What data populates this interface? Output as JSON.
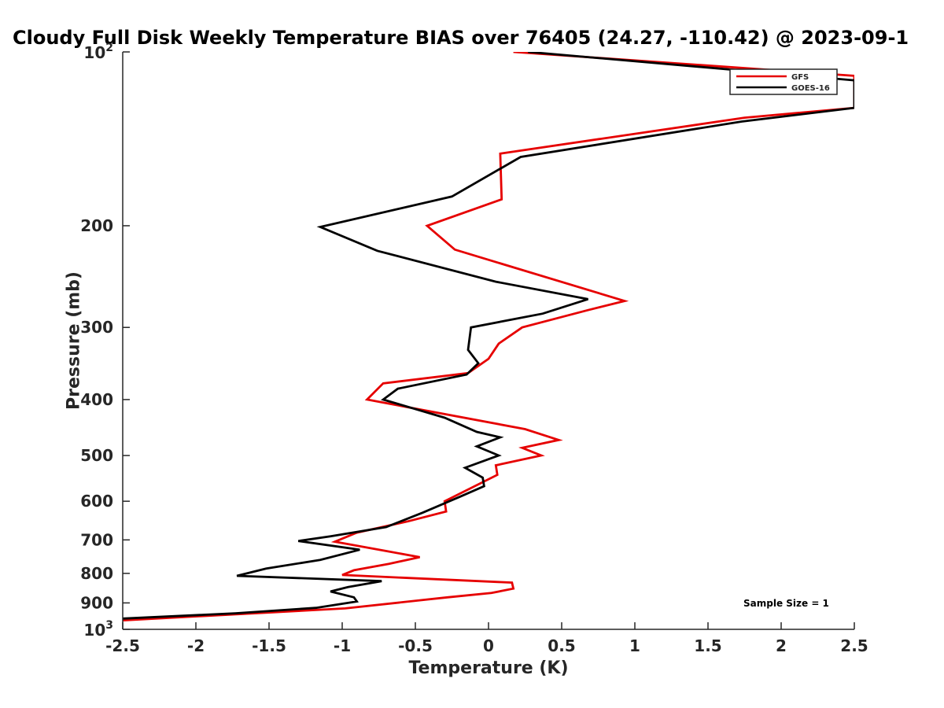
{
  "chart_data": {
    "type": "line",
    "title": "Cloudy Full Disk Weekly Temperature BIAS over 76405 (24.27, -110.42) @ 2023-09-1",
    "xlabel": "Temperature (K)",
    "ylabel": "Pressure (mb)",
    "xlim": [
      -2.5,
      2.5
    ],
    "ylim": [
      100,
      1000
    ],
    "yscale": "log",
    "y_reversed": true,
    "grid": false,
    "legend_position": "top-right",
    "x_ticks": [
      "-2.5",
      "-2",
      "-1.5",
      "-1",
      "-0.5",
      "0",
      "0.5",
      "1",
      "1.5",
      "2",
      "2.5"
    ],
    "x_tick_values": [
      -2.5,
      -2,
      -1.5,
      -1,
      -0.5,
      0,
      0.5,
      1,
      1.5,
      2,
      2.5
    ],
    "y_ticks": [
      {
        "value": 200,
        "label": "200"
      },
      {
        "value": 300,
        "label": "300"
      },
      {
        "value": 400,
        "label": "400"
      },
      {
        "value": 500,
        "label": "500"
      },
      {
        "value": 600,
        "label": "600"
      },
      {
        "value": 700,
        "label": "700"
      },
      {
        "value": 800,
        "label": "800"
      },
      {
        "value": 900,
        "label": "900"
      }
    ],
    "y_decade_ticks": [
      {
        "value": 100,
        "base": "10",
        "exp": "2"
      },
      {
        "value": 1000,
        "base": "10",
        "exp": "3"
      }
    ],
    "annotation": "Sample Size = 1",
    "series": [
      {
        "name": "GFS",
        "color": "#e60000",
        "points": [
          {
            "x": 0.17,
            "y": 100
          },
          {
            "x": 2.5,
            "y": 110
          },
          {
            "x": 2.5,
            "y": 125
          },
          {
            "x": 1.75,
            "y": 130
          },
          {
            "x": 0.08,
            "y": 150
          },
          {
            "x": 0.09,
            "y": 180
          },
          {
            "x": -0.42,
            "y": 200
          },
          {
            "x": -0.23,
            "y": 220
          },
          {
            "x": 0.93,
            "y": 270
          },
          {
            "x": 0.68,
            "y": 280
          },
          {
            "x": 0.23,
            "y": 300
          },
          {
            "x": 0.07,
            "y": 320
          },
          {
            "x": 0.0,
            "y": 340
          },
          {
            "x": -0.14,
            "y": 360
          },
          {
            "x": -0.72,
            "y": 375
          },
          {
            "x": -0.83,
            "y": 400
          },
          {
            "x": 0.25,
            "y": 450
          },
          {
            "x": 0.48,
            "y": 470
          },
          {
            "x": 0.23,
            "y": 485
          },
          {
            "x": 0.36,
            "y": 500
          },
          {
            "x": 0.05,
            "y": 520
          },
          {
            "x": 0.06,
            "y": 540
          },
          {
            "x": -0.3,
            "y": 600
          },
          {
            "x": -0.29,
            "y": 625
          },
          {
            "x": -0.55,
            "y": 650
          },
          {
            "x": -0.9,
            "y": 680
          },
          {
            "x": -1.05,
            "y": 705
          },
          {
            "x": -0.72,
            "y": 730
          },
          {
            "x": -0.47,
            "y": 750
          },
          {
            "x": -0.68,
            "y": 770
          },
          {
            "x": -0.92,
            "y": 790
          },
          {
            "x": -1.0,
            "y": 805
          },
          {
            "x": 0.16,
            "y": 830
          },
          {
            "x": 0.17,
            "y": 850
          },
          {
            "x": 0.02,
            "y": 865
          },
          {
            "x": -0.28,
            "y": 880
          },
          {
            "x": -0.98,
            "y": 920
          },
          {
            "x": -2.5,
            "y": 965
          }
        ]
      },
      {
        "name": "GOES-16",
        "color": "#000000",
        "points": [
          {
            "x": 0.27,
            "y": 100
          },
          {
            "x": 2.5,
            "y": 112
          },
          {
            "x": 2.5,
            "y": 125
          },
          {
            "x": 1.73,
            "y": 132
          },
          {
            "x": 0.22,
            "y": 152
          },
          {
            "x": -0.25,
            "y": 178
          },
          {
            "x": -1.15,
            "y": 201
          },
          {
            "x": -0.76,
            "y": 221
          },
          {
            "x": 0.05,
            "y": 250
          },
          {
            "x": 0.68,
            "y": 268
          },
          {
            "x": 0.37,
            "y": 284
          },
          {
            "x": -0.12,
            "y": 300
          },
          {
            "x": -0.14,
            "y": 328
          },
          {
            "x": -0.07,
            "y": 346
          },
          {
            "x": -0.15,
            "y": 362
          },
          {
            "x": -0.62,
            "y": 383
          },
          {
            "x": -0.72,
            "y": 400
          },
          {
            "x": -0.3,
            "y": 430
          },
          {
            "x": -0.08,
            "y": 455
          },
          {
            "x": 0.08,
            "y": 465
          },
          {
            "x": -0.08,
            "y": 482
          },
          {
            "x": 0.07,
            "y": 500
          },
          {
            "x": -0.16,
            "y": 525
          },
          {
            "x": -0.04,
            "y": 546
          },
          {
            "x": -0.03,
            "y": 565
          },
          {
            "x": -0.2,
            "y": 590
          },
          {
            "x": -0.45,
            "y": 628
          },
          {
            "x": -0.7,
            "y": 665
          },
          {
            "x": -1.08,
            "y": 690
          },
          {
            "x": -1.3,
            "y": 703
          },
          {
            "x": -0.88,
            "y": 728
          },
          {
            "x": -1.15,
            "y": 758
          },
          {
            "x": -1.52,
            "y": 785
          },
          {
            "x": -1.72,
            "y": 808
          },
          {
            "x": -0.73,
            "y": 825
          },
          {
            "x": -0.96,
            "y": 845
          },
          {
            "x": -1.08,
            "y": 860
          },
          {
            "x": -0.92,
            "y": 880
          },
          {
            "x": -0.9,
            "y": 895
          },
          {
            "x": -1.18,
            "y": 918
          },
          {
            "x": -1.73,
            "y": 938
          },
          {
            "x": -2.5,
            "y": 958
          }
        ]
      }
    ]
  }
}
